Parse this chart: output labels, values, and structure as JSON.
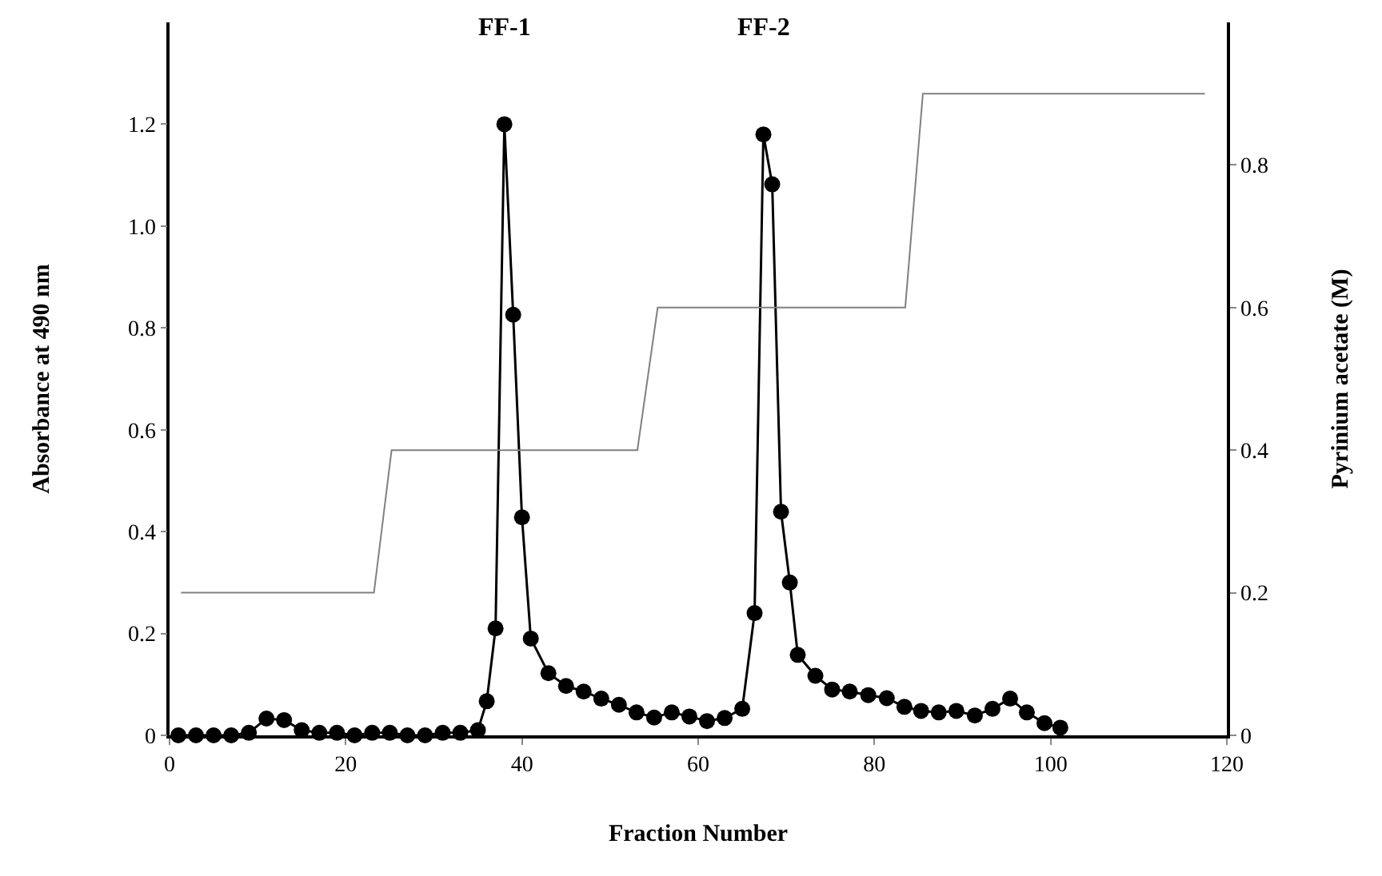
{
  "chart_data": {
    "type": "line",
    "xlabel": "Fraction Number",
    "ylabel": "Absorbance at 490 nm",
    "y2label": "Pyrinium acetate (M)",
    "xlim": [
      0,
      120
    ],
    "xticks": [
      0,
      20,
      40,
      60,
      80,
      100,
      120
    ],
    "ylim": [
      0,
      1.4
    ],
    "yticks": [
      0,
      0.2,
      0.4,
      0.6,
      0.8,
      {
        "value": 1,
        "label": "1.0"
      },
      1.2
    ],
    "y2lim": [
      0,
      1.0
    ],
    "y2ticks": [
      0,
      0.2,
      0.4,
      0.6,
      0.8
    ],
    "series": [
      {
        "marker": "circle",
        "color": "#000000",
        "x": [
          1,
          3,
          5,
          7,
          9,
          11,
          13,
          15,
          17,
          19,
          21,
          23,
          25,
          27,
          29,
          31,
          33,
          35,
          36,
          37,
          38,
          39,
          40,
          41,
          43,
          45,
          47,
          49,
          51,
          53,
          55,
          57,
          59,
          61,
          63,
          65,
          66.4,
          67.4,
          68.4,
          69.4,
          70.4,
          71.3,
          73.3,
          75.2,
          77.2,
          79.3,
          81.4,
          83.4,
          85.3,
          87.3,
          89.3,
          91.4,
          93.4,
          95.4,
          97.3,
          99.3,
          101.1
        ],
        "values": [
          0.0,
          0.0,
          0.0,
          0.0,
          0.005,
          0.033,
          0.03,
          0.01,
          0.005,
          0.005,
          0.0,
          0.005,
          0.005,
          0.0,
          0.0,
          0.005,
          0.005,
          0.01,
          0.067,
          0.21,
          1.2,
          0.826,
          0.428,
          0.19,
          0.122,
          0.097,
          0.086,
          0.072,
          0.06,
          0.045,
          0.035,
          0.045,
          0.037,
          0.028,
          0.034,
          0.052,
          0.24,
          1.18,
          1.082,
          0.439,
          0.3,
          0.158,
          0.117,
          0.09,
          0.086,
          0.079,
          0.073,
          0.056,
          0.048,
          0.045,
          0.048,
          0.039,
          0.052,
          0.072,
          0.045,
          0.024,
          0.015
        ]
      },
      {
        "type": "line",
        "marker": "none",
        "axis": "y2",
        "color": "#808080",
        "x": [
          1.3,
          23.2,
          25.2,
          53.1,
          55.4,
          83.5,
          85.5,
          117.5
        ],
        "values": [
          0.2,
          0.2,
          0.4,
          0.4,
          0.6,
          0.6,
          0.9,
          0.9
        ]
      }
    ],
    "annotations": [
      "FF-1",
      "FF-2"
    ]
  }
}
